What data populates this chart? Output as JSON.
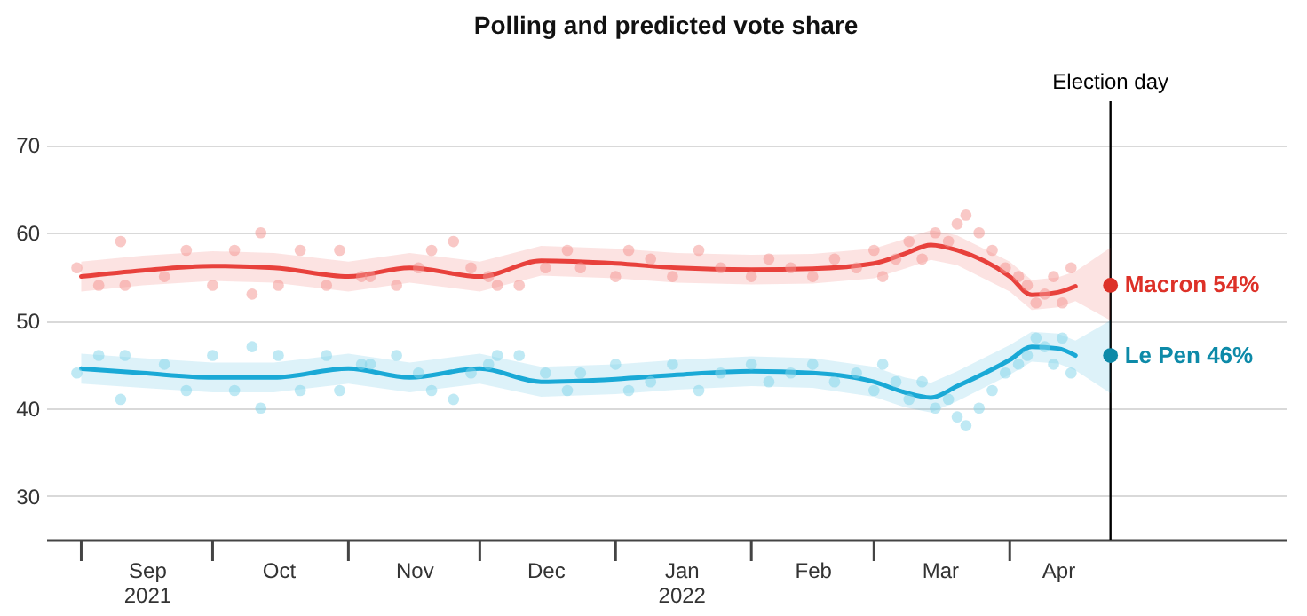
{
  "chart_data": {
    "type": "line",
    "title": "Polling and predicted vote share",
    "xlim": [
      "2021-08-24",
      "2022-06-03"
    ],
    "ylim": [
      25,
      75
    ],
    "yticks": [
      30,
      40,
      50,
      60,
      70
    ],
    "grid": "y",
    "xticks": [
      {
        "value": "2021-09-01",
        "label": null
      },
      {
        "value": "2021-09-16",
        "label": "Sep\n2021"
      },
      {
        "value": "2021-10-01",
        "label": null
      },
      {
        "value": "2021-10-16",
        "label": "Oct"
      },
      {
        "value": "2021-11-01",
        "label": null
      },
      {
        "value": "2021-11-16",
        "label": "Nov"
      },
      {
        "value": "2021-12-01",
        "label": null
      },
      {
        "value": "2021-12-16",
        "label": "Dec"
      },
      {
        "value": "2022-01-01",
        "label": null
      },
      {
        "value": "2022-01-16",
        "label": "Jan\n2022"
      },
      {
        "value": "2022-02-01",
        "label": null
      },
      {
        "value": "2022-02-15",
        "label": "Feb"
      },
      {
        "value": "2022-03-01",
        "label": null
      },
      {
        "value": "2022-03-16",
        "label": "Mar"
      },
      {
        "value": "2022-04-01",
        "label": null
      },
      {
        "value": "2022-04-12",
        "label": "Apr"
      }
    ],
    "ref_lines": [
      {
        "axis": "x",
        "value": "2022-04-24",
        "label": "Election day",
        "color": "#000000"
      }
    ],
    "series": [
      {
        "type": "scatter",
        "color": "#f4928d",
        "x": [
          "2021-08-31",
          "2021-09-05",
          "2021-09-10",
          "2021-09-11",
          "2021-09-20",
          "2021-09-25",
          "2021-10-01",
          "2021-10-06",
          "2021-10-10",
          "2021-10-12",
          "2021-10-16",
          "2021-10-21",
          "2021-10-27",
          "2021-10-30",
          "2021-11-04",
          "2021-11-06",
          "2021-11-12",
          "2021-11-17",
          "2021-11-20",
          "2021-11-25",
          "2021-11-29",
          "2021-12-03",
          "2021-12-05",
          "2021-12-10",
          "2021-12-16",
          "2021-12-21",
          "2021-12-24",
          "2022-01-01",
          "2022-01-04",
          "2022-01-09",
          "2022-01-14",
          "2022-01-20",
          "2022-01-25",
          "2022-02-01",
          "2022-02-05",
          "2022-02-10",
          "2022-02-15",
          "2022-02-20",
          "2022-02-25",
          "2022-03-01",
          "2022-03-03",
          "2022-03-06",
          "2022-03-09",
          "2022-03-12",
          "2022-03-15",
          "2022-03-18",
          "2022-03-20",
          "2022-03-22",
          "2022-03-25",
          "2022-03-28",
          "2022-03-31",
          "2022-04-03",
          "2022-04-05",
          "2022-04-07",
          "2022-04-09",
          "2022-04-11",
          "2022-04-13",
          "2022-04-15"
        ],
        "values": [
          56,
          54,
          59,
          54,
          55,
          58,
          54,
          58,
          53,
          60,
          54,
          58,
          54,
          58,
          55,
          55,
          54,
          56,
          58,
          59,
          56,
          55,
          54,
          54,
          56,
          58,
          56,
          55,
          58,
          57,
          55,
          58,
          56,
          55,
          57,
          56,
          55,
          57,
          56,
          58,
          55,
          57,
          59,
          57,
          60,
          59,
          61,
          62,
          60,
          58,
          56,
          55,
          54,
          52,
          53,
          55,
          52,
          56
        ]
      },
      {
        "type": "scatter",
        "color": "#7fd3ea",
        "x": [
          "2021-08-31",
          "2021-09-05",
          "2021-09-10",
          "2021-09-11",
          "2021-09-20",
          "2021-09-25",
          "2021-10-01",
          "2021-10-06",
          "2021-10-10",
          "2021-10-12",
          "2021-10-16",
          "2021-10-21",
          "2021-10-27",
          "2021-10-30",
          "2021-11-04",
          "2021-11-06",
          "2021-11-12",
          "2021-11-17",
          "2021-11-20",
          "2021-11-25",
          "2021-11-29",
          "2021-12-03",
          "2021-12-05",
          "2021-12-10",
          "2021-12-16",
          "2021-12-21",
          "2021-12-24",
          "2022-01-01",
          "2022-01-04",
          "2022-01-09",
          "2022-01-14",
          "2022-01-20",
          "2022-01-25",
          "2022-02-01",
          "2022-02-05",
          "2022-02-10",
          "2022-02-15",
          "2022-02-20",
          "2022-02-25",
          "2022-03-01",
          "2022-03-03",
          "2022-03-06",
          "2022-03-09",
          "2022-03-12",
          "2022-03-15",
          "2022-03-18",
          "2022-03-20",
          "2022-03-22",
          "2022-03-25",
          "2022-03-28",
          "2022-03-31",
          "2022-04-03",
          "2022-04-05",
          "2022-04-07",
          "2022-04-09",
          "2022-04-11",
          "2022-04-13",
          "2022-04-15"
        ],
        "values": [
          44,
          46,
          41,
          46,
          45,
          42,
          46,
          42,
          47,
          40,
          46,
          42,
          46,
          42,
          45,
          45,
          46,
          44,
          42,
          41,
          44,
          45,
          46,
          46,
          44,
          42,
          44,
          45,
          42,
          43,
          45,
          42,
          44,
          45,
          43,
          44,
          45,
          43,
          44,
          42,
          45,
          43,
          41,
          43,
          40,
          41,
          39,
          38,
          40,
          42,
          44,
          45,
          46,
          48,
          47,
          45,
          48,
          44
        ]
      },
      {
        "color": "#e8413c",
        "x": [
          "2021-09-01",
          "2021-09-15",
          "2021-10-01",
          "2021-10-15",
          "2021-11-01",
          "2021-11-15",
          "2021-12-01",
          "2021-12-15",
          "2022-01-01",
          "2022-01-15",
          "2022-02-01",
          "2022-02-15",
          "2022-03-01",
          "2022-03-08",
          "2022-03-14",
          "2022-03-20",
          "2022-04-01",
          "2022-04-06",
          "2022-04-12",
          "2022-04-16",
          "2022-04-24"
        ],
        "values": [
          55,
          55.7,
          56.2,
          56,
          55,
          56,
          55,
          56.8,
          56.5,
          56,
          55.8,
          55.9,
          56.5,
          57.6,
          58.6,
          58,
          55,
          52.9,
          53.2,
          53.9,
          null
        ],
        "lower": [
          53.3,
          54,
          54.5,
          54.3,
          53.3,
          54.3,
          53.3,
          55.1,
          54.8,
          54.3,
          54.1,
          54.2,
          54.8,
          55.9,
          56.9,
          56.3,
          53.3,
          51.2,
          51.5,
          52.2,
          50
        ],
        "upper": [
          56.7,
          57.4,
          57.9,
          57.7,
          56.7,
          57.7,
          56.7,
          58.5,
          58.2,
          57.7,
          57.5,
          57.6,
          58.2,
          59.3,
          60.3,
          59.7,
          56.7,
          54.6,
          54.9,
          55.6,
          58.3
        ]
      },
      {
        "color": "#1aa9d6",
        "x": [
          "2021-09-01",
          "2021-09-15",
          "2021-10-01",
          "2021-10-15",
          "2021-11-01",
          "2021-11-15",
          "2021-12-01",
          "2021-12-15",
          "2022-01-01",
          "2022-01-15",
          "2022-02-01",
          "2022-02-15",
          "2022-03-01",
          "2022-03-08",
          "2022-03-14",
          "2022-03-20",
          "2022-04-01",
          "2022-04-06",
          "2022-04-12",
          "2022-04-16",
          "2022-04-24"
        ],
        "values": [
          44.5,
          44,
          43.5,
          43.5,
          44.5,
          43.5,
          44.5,
          43,
          43.3,
          43.8,
          44.2,
          44,
          43,
          41.8,
          41.2,
          42.5,
          45.5,
          47,
          46.8,
          46,
          null
        ],
        "lower": [
          42.8,
          42.3,
          41.8,
          41.8,
          42.8,
          41.8,
          42.8,
          41.3,
          41.6,
          42.1,
          42.5,
          42.3,
          41.3,
          40.1,
          39.5,
          40.8,
          43.8,
          45.3,
          45.1,
          44.3,
          41.7
        ],
        "upper": [
          46.2,
          45.7,
          45.2,
          45.2,
          46.2,
          45.2,
          46.2,
          44.7,
          45,
          45.5,
          45.9,
          45.7,
          44.7,
          43.5,
          42.9,
          44.2,
          47.2,
          48.7,
          48.5,
          47.7,
          50
        ]
      },
      {
        "type": "scatter",
        "name": "Macron 54%",
        "color": "#dd3128",
        "x": [
          "2022-04-24"
        ],
        "values": [
          54
        ]
      },
      {
        "type": "scatter",
        "name": "Le Pen 46%",
        "color": "#0d8aa8",
        "x": [
          "2022-04-24"
        ],
        "values": [
          46
        ]
      }
    ]
  }
}
